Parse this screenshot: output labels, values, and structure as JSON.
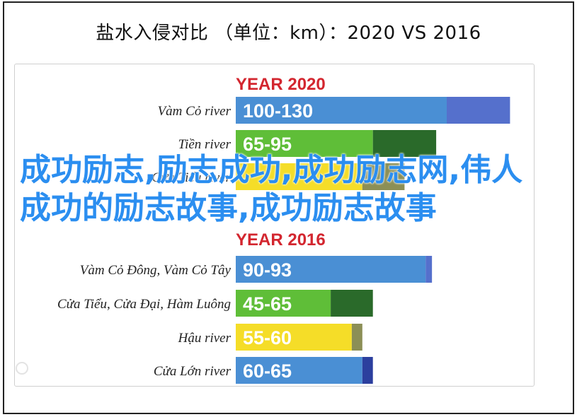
{
  "title": "盐水入侵对比 （单位：km）：2020 VS 2016",
  "watermark_text": "成功励志,励志成功,成功励志网,伟人成功的励志故事,成功励志故事",
  "colors": {
    "header_red": "#d3262f",
    "bar_blue": "#4a8fd4",
    "bar_blue_dark": "#5570cc",
    "bar_green": "#5fbe38",
    "bar_green_dark": "#2a6a2a",
    "bar_yellow": "#f5dd28",
    "bar_yellow_dark": "#8c8f56",
    "bar_navy": "#2c3f9e",
    "overlay_text": "#2b8ef0"
  },
  "chart_data": {
    "type": "bar",
    "orientation": "horizontal",
    "groups": [
      {
        "label": "YEAR 2020",
        "rows": [
          {
            "name": "Vàm Cỏ river",
            "range_label": "100-130",
            "min": 100,
            "max": 130,
            "color": "blue"
          },
          {
            "name": "Tiền river",
            "range_label": "65-95",
            "min": 65,
            "max": 95,
            "color": "green"
          },
          {
            "name": "Cửa Tiểu river",
            "range_label": "",
            "min": 60,
            "max": 80,
            "color": "yellow"
          }
        ]
      },
      {
        "label": "YEAR 2016",
        "rows": [
          {
            "name": "Vàm Cỏ Đông, Vàm Cỏ Tây",
            "range_label": "90-93",
            "min": 90,
            "max": 93,
            "color": "blue"
          },
          {
            "name": "Cửa Tiểu, Cửa Đại, Hàm Luông",
            "range_label": "45-65",
            "min": 45,
            "max": 65,
            "color": "green"
          },
          {
            "name": "Hậu river",
            "range_label": "55-60",
            "min": 55,
            "max": 60,
            "color": "yellow"
          },
          {
            "name": "Cửa Lớn river",
            "range_label": "60-65",
            "min": 60,
            "max": 65,
            "color": "navy"
          }
        ]
      }
    ]
  }
}
